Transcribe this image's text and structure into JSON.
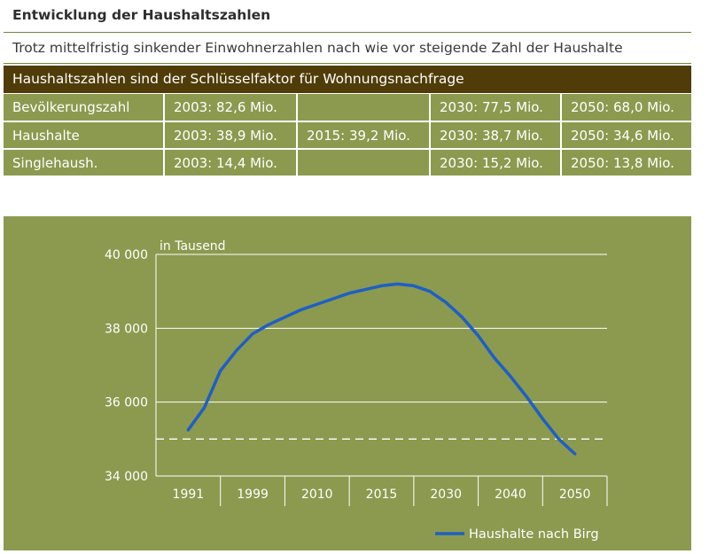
{
  "header": {
    "title": "Entwicklung der Haushaltszahlen",
    "subtitle": "Trotz mittelfristig sinkender Einwohnerzahlen nach wie vor steigende Zahl der Haushalte"
  },
  "table": {
    "header": "Haushaltszahlen sind der Schlüsselfaktor für Wohnungsnachfrage",
    "rows": [
      [
        "Bevölkerungszahl",
        "2003: 82,6 Mio.",
        "",
        "2030: 77,5 Mio.",
        "2050: 68,0 Mio."
      ],
      [
        "Haushalte",
        "2003: 38,9 Mio.",
        "2015: 39,2 Mio.",
        "2030: 38,7 Mio.",
        "2050: 34,6 Mio."
      ],
      [
        "Singlehaush.",
        "2003: 14,4 Mio.",
        "",
        "2030: 15,2 Mio.",
        "2050: 13,8 Mio."
      ]
    ]
  },
  "colors": {
    "header_bg": "#4f3c08",
    "panel_bg": "#8b9a4f",
    "line": "#1f5fc4",
    "rule": "#6f8a3a"
  },
  "chart_data": {
    "type": "line",
    "title": "",
    "ylabel": "in Tausend",
    "xlabel": "",
    "categories": [
      "1991",
      "1999",
      "2010",
      "2015",
      "2030",
      "2040",
      "2050"
    ],
    "ylim": [
      34000,
      40000
    ],
    "yticks": [
      34000,
      36000,
      38000,
      40000
    ],
    "ytick_labels": [
      "34 000",
      "36 000",
      "38 000",
      "40 000"
    ],
    "grid": true,
    "legend": "bottom-right",
    "reference_line": 35000,
    "series": [
      {
        "name": "Haushalte nach Birg",
        "x": [
          0,
          0.25,
          0.5,
          0.75,
          1,
          1.25,
          1.5,
          1.75,
          2,
          2.25,
          2.5,
          2.75,
          3,
          3.25,
          3.5,
          3.75,
          4,
          4.25,
          4.5,
          4.75,
          5,
          5.25,
          5.5,
          5.75,
          6
        ],
        "values": [
          35250,
          35850,
          36850,
          37400,
          37850,
          38100,
          38300,
          38500,
          38650,
          38800,
          38950,
          39050,
          39150,
          39200,
          39150,
          39000,
          38700,
          38300,
          37800,
          37200,
          36700,
          36150,
          35550,
          35000,
          34600
        ]
      }
    ]
  }
}
